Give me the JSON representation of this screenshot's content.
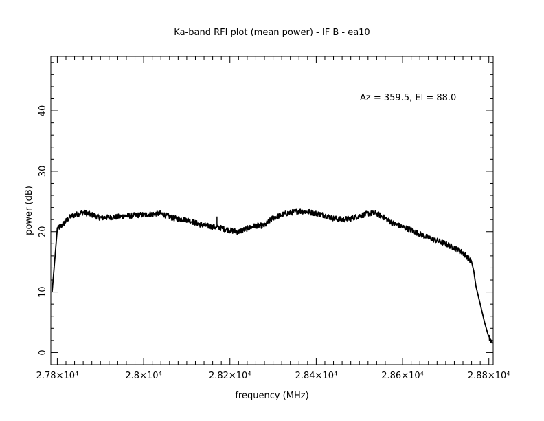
{
  "chart_data": {
    "type": "line",
    "title": "Ka-band RFI plot (mean power) - IF B - ea10",
    "xlabel": "frequency (MHz)",
    "ylabel": "power (dB)",
    "annotation": "Az = 359.5, El = 88.0",
    "xlim": [
      27785,
      28810
    ],
    "ylim": [
      -2,
      49
    ],
    "x_ticks": [
      {
        "value": 27800,
        "label": "2.78×10⁴"
      },
      {
        "value": 28000,
        "label": "2.8×10⁴"
      },
      {
        "value": 28200,
        "label": "2.82×10⁴"
      },
      {
        "value": 28400,
        "label": "2.84×10⁴"
      },
      {
        "value": 28600,
        "label": "2.86×10⁴"
      },
      {
        "value": 28800,
        "label": "2.88×10⁴"
      }
    ],
    "y_ticks": [
      {
        "value": 0,
        "label": "0"
      },
      {
        "value": 10,
        "label": "10"
      },
      {
        "value": 20,
        "label": "20"
      },
      {
        "value": 30,
        "label": "30"
      },
      {
        "value": 40,
        "label": "40"
      }
    ],
    "grid": false,
    "line_color": "#000000",
    "series": [
      {
        "x": [
          27788,
          27800,
          27810,
          27830,
          27860,
          27880,
          27900,
          27930,
          27960,
          28000,
          28040,
          28070,
          28100,
          28130,
          28160,
          28180,
          28200,
          28220,
          28240,
          28260,
          28280,
          28300,
          28330,
          28360,
          28380,
          28400,
          28420,
          28440,
          28460,
          28480,
          28500,
          28520,
          28540,
          28560,
          28580,
          28600,
          28620,
          28640,
          28660,
          28680,
          28700,
          28720,
          28740,
          28750,
          28760,
          28765,
          28770,
          28780,
          28790,
          28800,
          28808
        ],
        "y": [
          10,
          20.5,
          21,
          22.5,
          23.2,
          22.8,
          22.3,
          22.4,
          22.6,
          22.8,
          23,
          22.2,
          22,
          21.2,
          20.8,
          20.6,
          20.2,
          20,
          20.5,
          21,
          21,
          22.3,
          23,
          23.4,
          23.3,
          23,
          22.7,
          22.2,
          22,
          22.2,
          22.6,
          23,
          23,
          22.2,
          21.3,
          20.8,
          20.3,
          19.6,
          19,
          18.5,
          18,
          17.3,
          16.5,
          15.8,
          15,
          13.5,
          11,
          8,
          5,
          2.5,
          1.5
        ]
      }
    ]
  }
}
